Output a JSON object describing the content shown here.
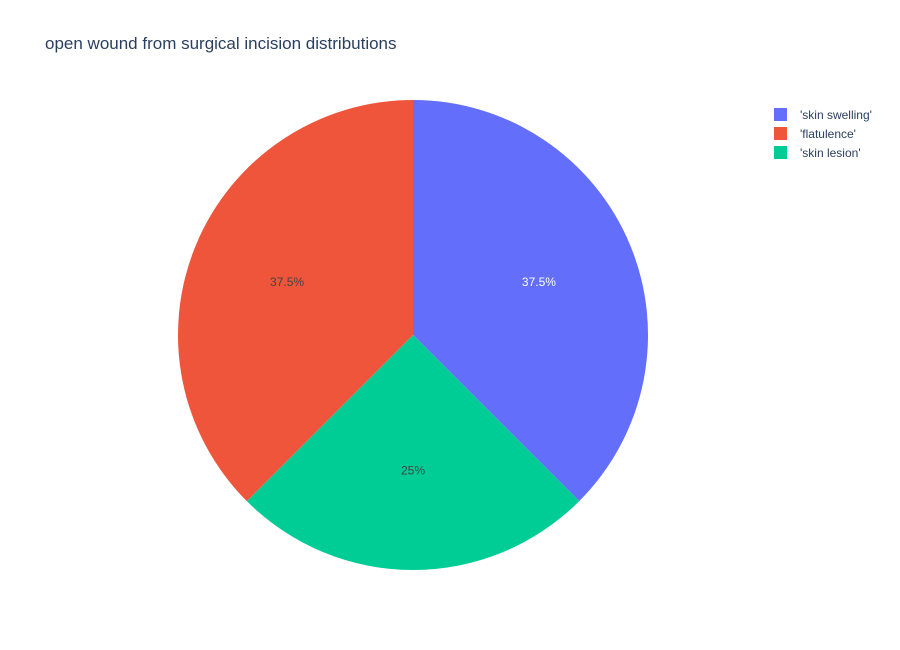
{
  "chart_data": {
    "type": "pie",
    "title": "open wound from surgical incision distributions",
    "legend_position": "top-right",
    "slices": [
      {
        "name": "'skin swelling'",
        "value": 37.5,
        "label": "37.5%",
        "color": "#636efa",
        "label_color": "#ffffff"
      },
      {
        "name": "'skin lesion'",
        "value": 25,
        "label": "25%",
        "color": "#00cc96",
        "label_color": "#444444"
      },
      {
        "name": "'flatulence'",
        "value": 37.5,
        "label": "37.5%",
        "color": "#ef553b",
        "label_color": "#444444"
      }
    ],
    "legend_order": [
      "'skin swelling'",
      "'flatulence'",
      "'skin lesion'"
    ]
  }
}
